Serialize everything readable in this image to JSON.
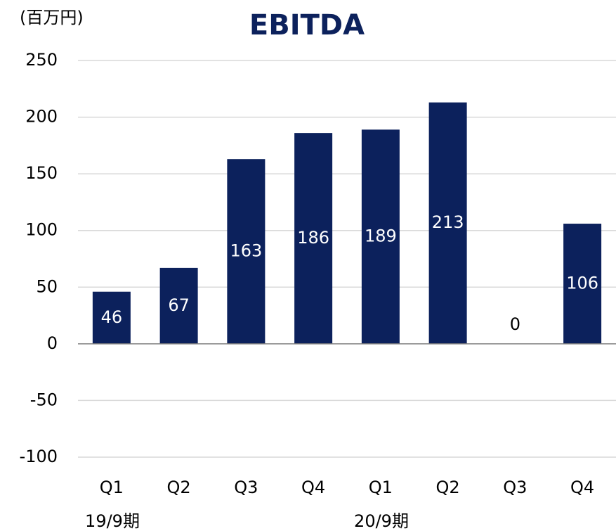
{
  "chart_data": {
    "type": "bar",
    "title": "EBITDA",
    "unit_label": "(百万円)",
    "categories": [
      "Q1",
      "Q2",
      "Q3",
      "Q4",
      "Q1",
      "Q2",
      "Q3",
      "Q4"
    ],
    "values": [
      46,
      67,
      163,
      186,
      189,
      213,
      0,
      106
    ],
    "groups": [
      "19/9期",
      "20/9期"
    ],
    "color": "#0c215c",
    "ylim": [
      -100,
      250
    ],
    "yticks": [
      -100,
      -50,
      0,
      50,
      100,
      150,
      200,
      250
    ],
    "grid": true
  }
}
